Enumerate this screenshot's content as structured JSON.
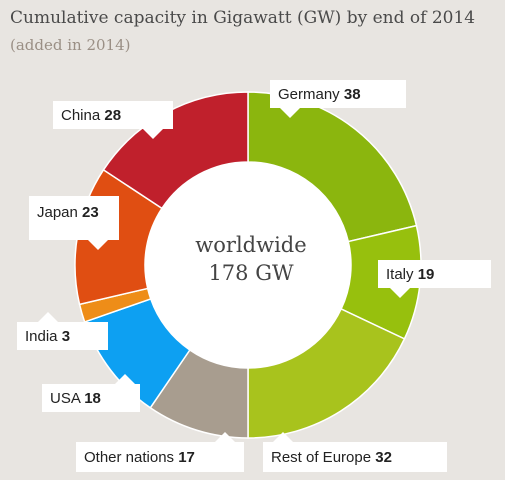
{
  "chart_data": {
    "type": "pie",
    "title": "Cumulative capacity in Gigawatt (GW) by end of 2014",
    "subtitle": "(added in 2014)",
    "center_label": [
      "worldwide",
      "178 GW"
    ],
    "donut": true,
    "slices": [
      {
        "label": "Germany",
        "value": 38,
        "color": "#8bb60e"
      },
      {
        "label": "Italy",
        "value": 19,
        "color": "#97c00d"
      },
      {
        "label": "Rest of Europe",
        "value": 32,
        "color": "#a8c31d"
      },
      {
        "label": "Other nations",
        "value": 17,
        "color": "#a89d8f"
      },
      {
        "label": "USA",
        "value": 18,
        "color": "#0da0f2"
      },
      {
        "label": "India",
        "value": 3,
        "color": "#ee8d18"
      },
      {
        "label": "Japan",
        "value": 23,
        "color": "#e04e12"
      },
      {
        "label": "China",
        "value": 28,
        "color": "#c0202c"
      }
    ]
  }
}
